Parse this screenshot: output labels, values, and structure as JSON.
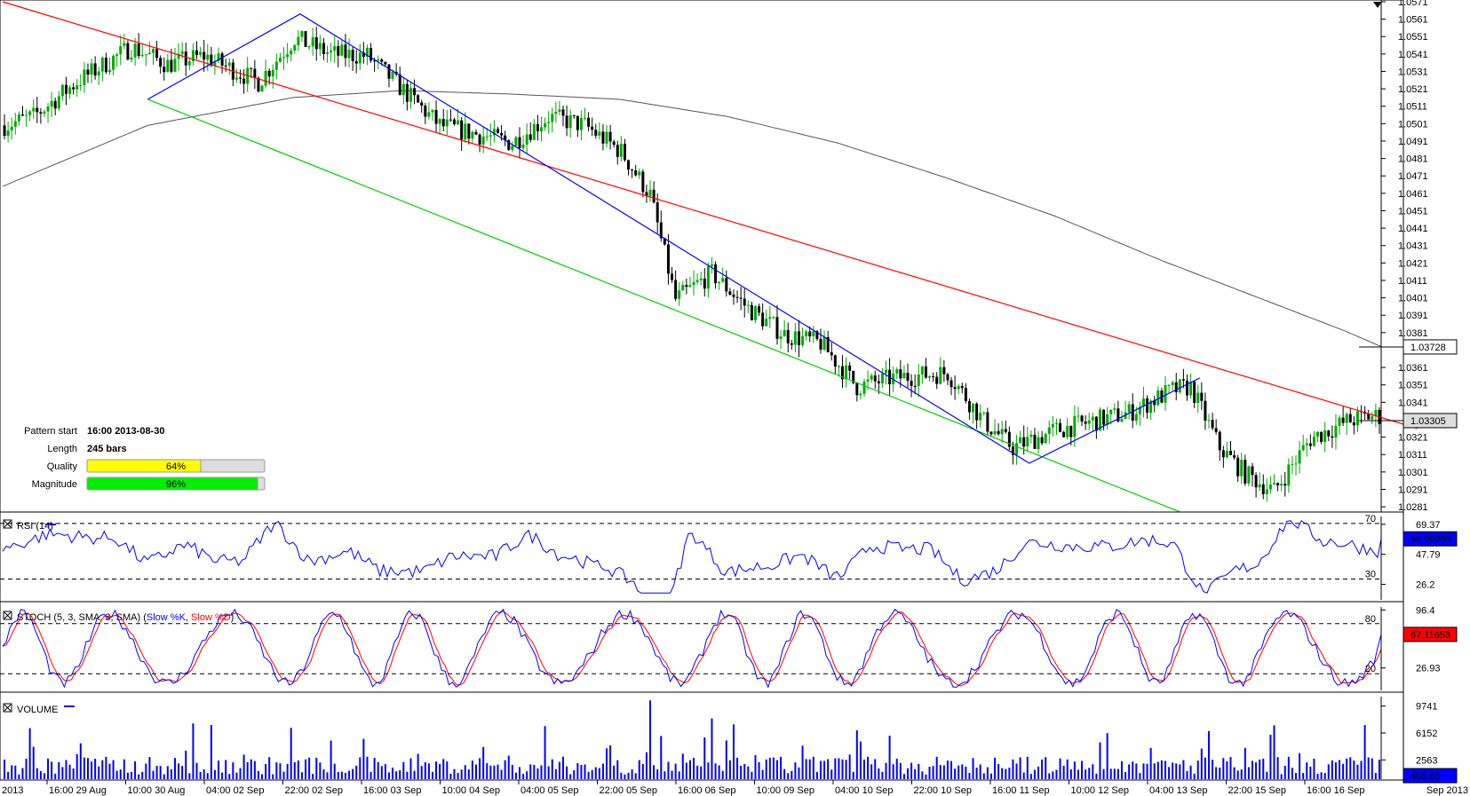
{
  "chart_data": {
    "type": "candlestick",
    "instrument_axis": {
      "price_ticks": [
        "1.0571",
        "1.0561",
        "1.0551",
        "1.0541",
        "1.0531",
        "1.0521",
        "1.0511",
        "1.0501",
        "1.0491",
        "1.0481",
        "1.0471",
        "1.0461",
        "1.0451",
        "1.0441",
        "1.0431",
        "1.0421",
        "1.0411",
        "1.0401",
        "1.0391",
        "1.0381",
        "1.0361",
        "1.0351",
        "1.0341",
        "1.0321",
        "1.0311",
        "1.0301",
        "1.0291",
        "1.0281"
      ],
      "ylim": [
        1.0278,
        1.0572
      ],
      "ma_label": "1.03728",
      "ma_value": 1.03728,
      "last_label": "1.03305",
      "last_value": 1.03305
    },
    "time_ticks": [
      "2013",
      "16:00 29 Aug",
      "10:00 30 Aug",
      "04:00 02 Sep",
      "22:00 02 Sep",
      "16:00 03 Sep",
      "10:00 04 Sep",
      "04:00 05 Sep",
      "22:00 05 Sep",
      "16:00 06 Sep",
      "10:00 09 Sep",
      "04:00 10 Sep",
      "22:00 10 Sep",
      "16:00 11 Sep",
      "10:00 12 Sep",
      "04:00 13 Sep",
      "22:00 15 Sep",
      "16:00 16 Sep",
      "Sep 2013"
    ],
    "close_path": [
      [
        0,
        1.05
      ],
      [
        8,
        1.0505
      ],
      [
        20,
        1.0525
      ],
      [
        35,
        1.0545
      ],
      [
        45,
        1.0535
      ],
      [
        55,
        1.054
      ],
      [
        70,
        1.0525
      ],
      [
        80,
        1.055
      ],
      [
        90,
        1.0541
      ],
      [
        100,
        1.054
      ],
      [
        110,
        1.052
      ],
      [
        120,
        1.05
      ],
      [
        130,
        1.0495
      ],
      [
        140,
        1.049
      ],
      [
        150,
        1.0505
      ],
      [
        160,
        1.05
      ],
      [
        170,
        1.0485
      ],
      [
        178,
        1.046
      ],
      [
        185,
        1.04
      ],
      [
        195,
        1.0415
      ],
      [
        205,
        1.0395
      ],
      [
        215,
        1.038
      ],
      [
        225,
        1.0375
      ],
      [
        235,
        1.035
      ],
      [
        245,
        1.0355
      ],
      [
        260,
        1.0358
      ],
      [
        270,
        1.033
      ],
      [
        278,
        1.0315
      ],
      [
        290,
        1.0325
      ],
      [
        300,
        1.033
      ],
      [
        310,
        1.0335
      ],
      [
        322,
        1.0348
      ],
      [
        327,
        1.035
      ],
      [
        335,
        1.0315
      ],
      [
        342,
        1.03
      ],
      [
        350,
        1.029
      ],
      [
        360,
        1.032
      ],
      [
        370,
        1.033
      ],
      [
        376,
        1.0333
      ]
    ],
    "trend_lines": [
      {
        "color": "#ff0000",
        "points": [
          [
            0,
            1.0571
          ],
          [
            390,
            1.0326
          ]
        ]
      },
      {
        "color": "#00cc00",
        "points": [
          [
            40,
            1.0515
          ],
          [
            327,
            1.0276
          ]
        ]
      },
      {
        "color": "#0000ff",
        "points": [
          [
            40,
            1.0515
          ],
          [
            82,
            1.0564
          ],
          [
            283,
            1.0306
          ],
          [
            330,
            1.0355
          ]
        ]
      }
    ],
    "sma_path": [
      [
        0,
        1.0465
      ],
      [
        40,
        1.05
      ],
      [
        80,
        1.0516
      ],
      [
        110,
        1.052
      ],
      [
        140,
        1.0518
      ],
      [
        170,
        1.0515
      ],
      [
        200,
        1.0505
      ],
      [
        230,
        1.049
      ],
      [
        260,
        1.047
      ],
      [
        290,
        1.0448
      ],
      [
        320,
        1.0422
      ],
      [
        350,
        1.0398
      ],
      [
        370,
        1.0382
      ],
      [
        380,
        1.0373
      ]
    ],
    "pattern": {
      "start_label": "Pattern start",
      "start_value": "16:00 2013-08-30",
      "length_label": "Length",
      "length_value": "245 bars",
      "quality_label": "Quality",
      "quality_value": "64%",
      "quality_fraction": 0.64,
      "magnitude_label": "Magnitude",
      "magnitude_value": "96%",
      "magnitude_fraction": 0.96
    },
    "rsi": {
      "title": "RSI (14)",
      "ticks": [
        "69.37",
        "47.79",
        "26.2"
      ],
      "levels": [
        "70",
        "30"
      ],
      "last_label": "58.90365",
      "last_value": 58.90365,
      "ylim": [
        15,
        75
      ]
    },
    "stoch": {
      "title_prefix": "STOCH (5, 3, SMA, 3, SMA) (",
      "k_name": "Slow %K",
      "d_name": "Slow %D",
      "title_suffix": ")",
      "ticks": [
        "96.4",
        "26.93"
      ],
      "levels": [
        "80",
        "20"
      ],
      "last_label": "67.11653",
      "last_value": 67.11653,
      "ylim": [
        0,
        100
      ]
    },
    "volume": {
      "title": "VOLUME",
      "ticks": [
        "9741",
        "6152",
        "2563"
      ],
      "last_label": "465.85",
      "last_value": 465.85,
      "ylim": [
        0,
        11000
      ]
    },
    "colors": {
      "up": "#00aa00",
      "down": "#000000",
      "rsi": "#0000ff",
      "stoch_k": "#0000ff",
      "stoch_d": "#ff0000",
      "volume": "#0000ff",
      "sma": "#555555",
      "quality": "#ffff00",
      "magnitude": "#00ee00"
    }
  }
}
